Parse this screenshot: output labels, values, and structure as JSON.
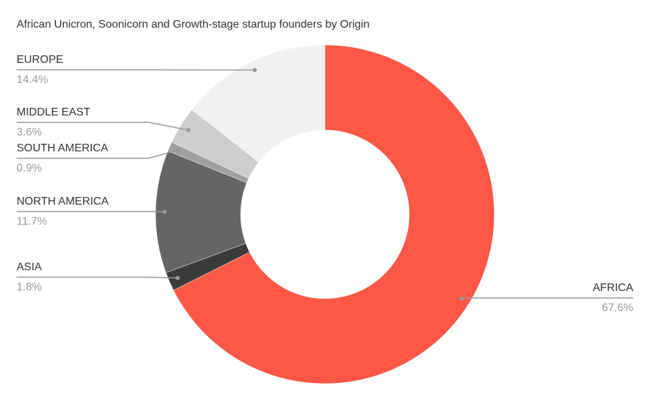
{
  "chart_data": {
    "type": "pie",
    "title": "African Unicron, Soonicorn and Growth-stage startup founders by Origin",
    "categories": [
      "AFRICA",
      "ASIA",
      "NORTH AMERICA",
      "SOUTH AMERICA",
      "MIDDLE EAST",
      "EUROPE"
    ],
    "values": [
      67.6,
      1.8,
      11.7,
      0.9,
      3.6,
      14.4
    ],
    "value_labels": [
      "67.6%",
      "1.8%",
      "11.7%",
      "0.9%",
      "3.6%",
      "14.4%"
    ],
    "colors": [
      "#fd5747",
      "#3b3b3c",
      "#666566",
      "#a0a0a0",
      "#cdcdcd",
      "#f2f0f3"
    ],
    "donut": true
  }
}
